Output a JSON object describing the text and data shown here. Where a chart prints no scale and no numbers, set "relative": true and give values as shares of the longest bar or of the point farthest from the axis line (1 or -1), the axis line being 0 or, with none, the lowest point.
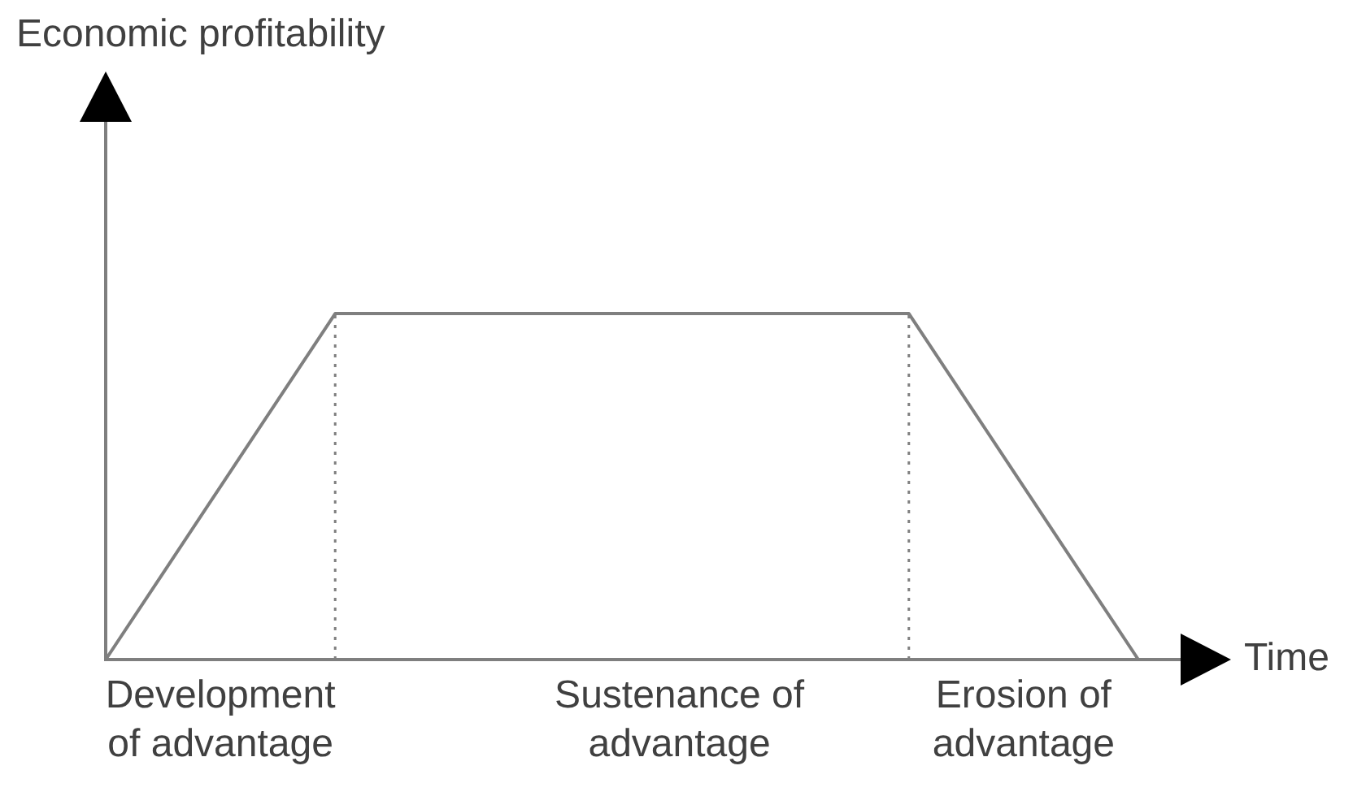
{
  "chart_data": {
    "type": "line",
    "xlabel": "Time",
    "annotations": [
      "Economic profitability"
    ],
    "relative": true,
    "marker": "none",
    "categories": [
      null,
      null,
      "Development of advantage",
      null,
      null,
      null,
      null,
      null,
      null,
      null,
      "Sustenance of advantage",
      null,
      null,
      null,
      null,
      null,
      "Erosion of advantage",
      null,
      null
    ],
    "series": [
      {
        "color": "#7f7f7f",
        "values": [
          0,
          0.25,
          0.5,
          0.75,
          1,
          1,
          1,
          1,
          1,
          1,
          1,
          1,
          1,
          1,
          1,
          0.75,
          0.5,
          0.25,
          0
        ]
      }
    ]
  }
}
